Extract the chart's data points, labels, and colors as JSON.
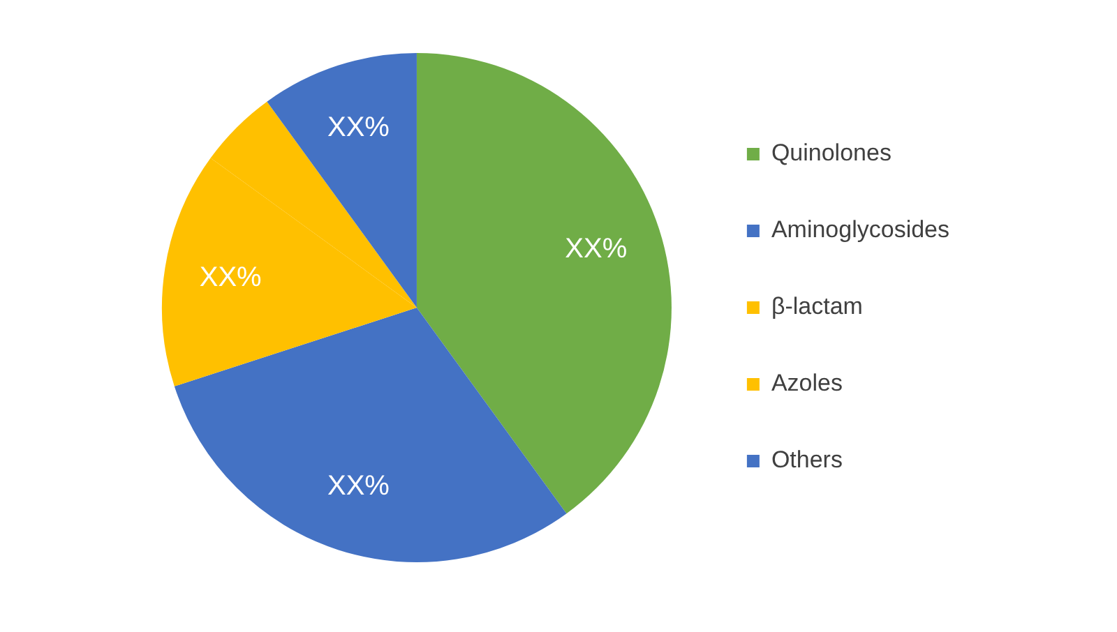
{
  "chart_data": {
    "type": "pie",
    "categories": [
      "Quinolones",
      "Aminoglycosides",
      "β-lactam",
      "Azoles",
      "Others"
    ],
    "values": [
      40,
      30,
      15,
      5,
      10
    ],
    "value_labels": [
      "XX%",
      "XX%",
      "XX%",
      null,
      "XX%"
    ],
    "colors": [
      "#70ad47",
      "#4472c4",
      "#ffc000",
      "#ffc000",
      "#4472c4"
    ],
    "legend": "right"
  }
}
